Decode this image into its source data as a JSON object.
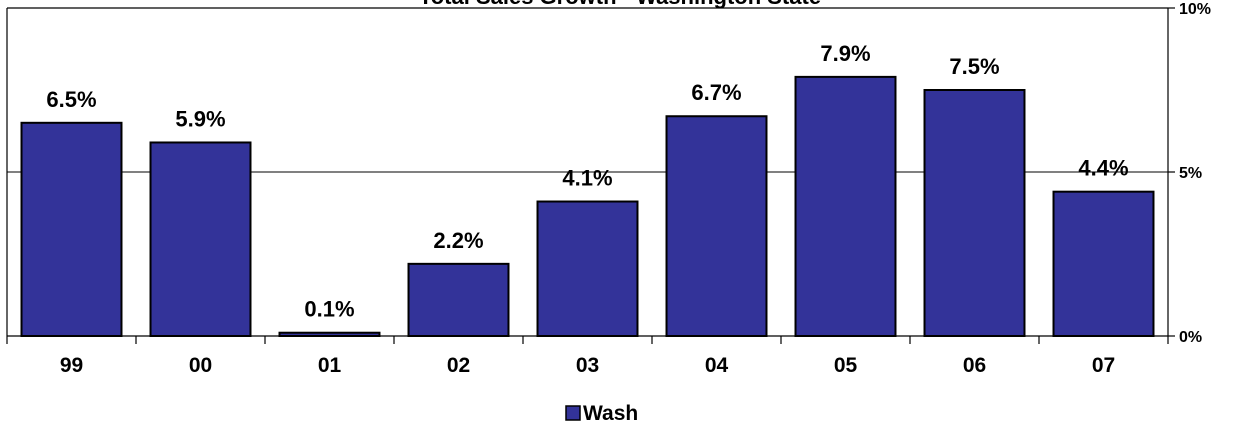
{
  "chart_data": {
    "type": "bar",
    "title": "Total Sales Growth - Washington State",
    "categories": [
      "99",
      "00",
      "01",
      "02",
      "03",
      "04",
      "05",
      "06",
      "07"
    ],
    "series": [
      {
        "name": "Wash",
        "values": [
          6.5,
          5.9,
          0.1,
          2.2,
          4.1,
          6.7,
          7.9,
          7.5,
          4.4
        ],
        "labels": [
          "6.5%",
          "5.9%",
          "0.1%",
          "2.2%",
          "4.1%",
          "6.7%",
          "7.9%",
          "7.5%",
          "4.4%"
        ]
      }
    ],
    "ylim": [
      0,
      10
    ],
    "yticks": [
      0,
      5,
      10
    ],
    "ytick_labels": [
      "0%",
      "5%",
      "10%"
    ],
    "y_axis_side": "right",
    "grid": true,
    "legend_position": "bottom-center",
    "colors": {
      "bar": "#333399",
      "border": "#000000"
    },
    "xlabel": "",
    "ylabel": ""
  }
}
